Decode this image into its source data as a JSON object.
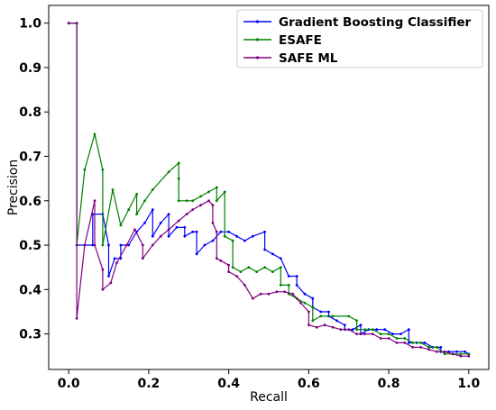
{
  "chart_data": {
    "type": "line",
    "xlabel": "Recall",
    "ylabel": "Precision",
    "xlim": [
      -0.05,
      1.05
    ],
    "ylim": [
      0.22,
      1.04
    ],
    "xticks": [
      "0.0",
      "0.2",
      "0.4",
      "0.6",
      "0.8",
      "1.0"
    ],
    "yticks": [
      "0.3",
      "0.4",
      "0.5",
      "0.6",
      "0.7",
      "0.8",
      "0.9",
      "1.0"
    ],
    "grid": false,
    "legend_position": "top-right",
    "series": [
      {
        "name": "Gradient Boosting Classifier",
        "color": "#0000ff",
        "points": [
          [
            0.0,
            1.0
          ],
          [
            0.02,
            1.0
          ],
          [
            0.02,
            0.5
          ],
          [
            0.04,
            0.5
          ],
          [
            0.06,
            0.5
          ],
          [
            0.06,
            0.57
          ],
          [
            0.085,
            0.57
          ],
          [
            0.1,
            0.5
          ],
          [
            0.1,
            0.43
          ],
          [
            0.115,
            0.47
          ],
          [
            0.13,
            0.47
          ],
          [
            0.13,
            0.5
          ],
          [
            0.15,
            0.5
          ],
          [
            0.17,
            0.53
          ],
          [
            0.19,
            0.55
          ],
          [
            0.21,
            0.58
          ],
          [
            0.21,
            0.52
          ],
          [
            0.23,
            0.55
          ],
          [
            0.25,
            0.57
          ],
          [
            0.25,
            0.52
          ],
          [
            0.27,
            0.54
          ],
          [
            0.29,
            0.54
          ],
          [
            0.29,
            0.52
          ],
          [
            0.31,
            0.53
          ],
          [
            0.32,
            0.53
          ],
          [
            0.32,
            0.48
          ],
          [
            0.34,
            0.5
          ],
          [
            0.36,
            0.51
          ],
          [
            0.38,
            0.53
          ],
          [
            0.4,
            0.53
          ],
          [
            0.42,
            0.52
          ],
          [
            0.44,
            0.51
          ],
          [
            0.46,
            0.52
          ],
          [
            0.49,
            0.53
          ],
          [
            0.49,
            0.49
          ],
          [
            0.51,
            0.48
          ],
          [
            0.53,
            0.47
          ],
          [
            0.55,
            0.43
          ],
          [
            0.57,
            0.43
          ],
          [
            0.57,
            0.41
          ],
          [
            0.59,
            0.39
          ],
          [
            0.61,
            0.38
          ],
          [
            0.61,
            0.36
          ],
          [
            0.63,
            0.35
          ],
          [
            0.65,
            0.35
          ],
          [
            0.65,
            0.34
          ],
          [
            0.67,
            0.33
          ],
          [
            0.69,
            0.32
          ],
          [
            0.69,
            0.31
          ],
          [
            0.71,
            0.31
          ],
          [
            0.73,
            0.32
          ],
          [
            0.73,
            0.3
          ],
          [
            0.75,
            0.31
          ],
          [
            0.77,
            0.31
          ],
          [
            0.79,
            0.31
          ],
          [
            0.81,
            0.3
          ],
          [
            0.83,
            0.3
          ],
          [
            0.85,
            0.31
          ],
          [
            0.85,
            0.28
          ],
          [
            0.87,
            0.28
          ],
          [
            0.89,
            0.28
          ],
          [
            0.91,
            0.27
          ],
          [
            0.93,
            0.27
          ],
          [
            0.93,
            0.26
          ],
          [
            0.95,
            0.26
          ],
          [
            0.97,
            0.26
          ],
          [
            0.99,
            0.26
          ],
          [
            1.0,
            0.255
          ]
        ]
      },
      {
        "name": "ESAFE",
        "color": "#008000",
        "points": [
          [
            0.0,
            1.0
          ],
          [
            0.02,
            1.0
          ],
          [
            0.02,
            0.5
          ],
          [
            0.04,
            0.67
          ],
          [
            0.065,
            0.75
          ],
          [
            0.085,
            0.67
          ],
          [
            0.085,
            0.5
          ],
          [
            0.11,
            0.625
          ],
          [
            0.13,
            0.545
          ],
          [
            0.15,
            0.58
          ],
          [
            0.17,
            0.615
          ],
          [
            0.17,
            0.57
          ],
          [
            0.19,
            0.6
          ],
          [
            0.21,
            0.625
          ],
          [
            0.25,
            0.665
          ],
          [
            0.275,
            0.685
          ],
          [
            0.275,
            0.65
          ],
          [
            0.275,
            0.6
          ],
          [
            0.295,
            0.6
          ],
          [
            0.31,
            0.6
          ],
          [
            0.33,
            0.61
          ],
          [
            0.35,
            0.62
          ],
          [
            0.37,
            0.63
          ],
          [
            0.37,
            0.6
          ],
          [
            0.39,
            0.62
          ],
          [
            0.39,
            0.52
          ],
          [
            0.41,
            0.51
          ],
          [
            0.41,
            0.45
          ],
          [
            0.43,
            0.44
          ],
          [
            0.45,
            0.45
          ],
          [
            0.47,
            0.44
          ],
          [
            0.49,
            0.45
          ],
          [
            0.51,
            0.44
          ],
          [
            0.53,
            0.45
          ],
          [
            0.53,
            0.41
          ],
          [
            0.55,
            0.41
          ],
          [
            0.55,
            0.39
          ],
          [
            0.57,
            0.38
          ],
          [
            0.59,
            0.37
          ],
          [
            0.61,
            0.36
          ],
          [
            0.61,
            0.33
          ],
          [
            0.63,
            0.34
          ],
          [
            0.66,
            0.34
          ],
          [
            0.7,
            0.34
          ],
          [
            0.72,
            0.33
          ],
          [
            0.72,
            0.31
          ],
          [
            0.74,
            0.31
          ],
          [
            0.76,
            0.31
          ],
          [
            0.78,
            0.3
          ],
          [
            0.8,
            0.3
          ],
          [
            0.82,
            0.29
          ],
          [
            0.84,
            0.29
          ],
          [
            0.86,
            0.28
          ],
          [
            0.88,
            0.28
          ],
          [
            0.9,
            0.27
          ],
          [
            0.92,
            0.27
          ],
          [
            0.94,
            0.255
          ],
          [
            0.96,
            0.255
          ],
          [
            0.98,
            0.255
          ],
          [
            1.0,
            0.255
          ]
        ]
      },
      {
        "name": "SAFE ML",
        "color": "#800080",
        "points": [
          [
            0.0,
            1.0
          ],
          [
            0.02,
            1.0
          ],
          [
            0.02,
            0.335
          ],
          [
            0.04,
            0.5
          ],
          [
            0.065,
            0.6
          ],
          [
            0.065,
            0.5
          ],
          [
            0.085,
            0.445
          ],
          [
            0.085,
            0.4
          ],
          [
            0.105,
            0.415
          ],
          [
            0.12,
            0.46
          ],
          [
            0.145,
            0.5
          ],
          [
            0.165,
            0.535
          ],
          [
            0.185,
            0.5
          ],
          [
            0.185,
            0.47
          ],
          [
            0.21,
            0.5
          ],
          [
            0.23,
            0.52
          ],
          [
            0.25,
            0.535
          ],
          [
            0.275,
            0.555
          ],
          [
            0.295,
            0.57
          ],
          [
            0.31,
            0.58
          ],
          [
            0.33,
            0.59
          ],
          [
            0.35,
            0.6
          ],
          [
            0.36,
            0.59
          ],
          [
            0.36,
            0.55
          ],
          [
            0.37,
            0.53
          ],
          [
            0.37,
            0.47
          ],
          [
            0.38,
            0.465
          ],
          [
            0.4,
            0.455
          ],
          [
            0.4,
            0.44
          ],
          [
            0.42,
            0.43
          ],
          [
            0.44,
            0.41
          ],
          [
            0.46,
            0.38
          ],
          [
            0.48,
            0.39
          ],
          [
            0.5,
            0.39
          ],
          [
            0.52,
            0.395
          ],
          [
            0.54,
            0.395
          ],
          [
            0.56,
            0.39
          ],
          [
            0.58,
            0.37
          ],
          [
            0.6,
            0.35
          ],
          [
            0.6,
            0.32
          ],
          [
            0.62,
            0.315
          ],
          [
            0.64,
            0.32
          ],
          [
            0.66,
            0.315
          ],
          [
            0.68,
            0.31
          ],
          [
            0.7,
            0.31
          ],
          [
            0.72,
            0.3
          ],
          [
            0.74,
            0.3
          ],
          [
            0.76,
            0.3
          ],
          [
            0.78,
            0.29
          ],
          [
            0.8,
            0.29
          ],
          [
            0.82,
            0.28
          ],
          [
            0.84,
            0.28
          ],
          [
            0.86,
            0.27
          ],
          [
            0.88,
            0.27
          ],
          [
            0.9,
            0.265
          ],
          [
            0.92,
            0.26
          ],
          [
            0.94,
            0.26
          ],
          [
            0.96,
            0.255
          ],
          [
            0.98,
            0.25
          ],
          [
            1.0,
            0.25
          ]
        ]
      }
    ]
  }
}
